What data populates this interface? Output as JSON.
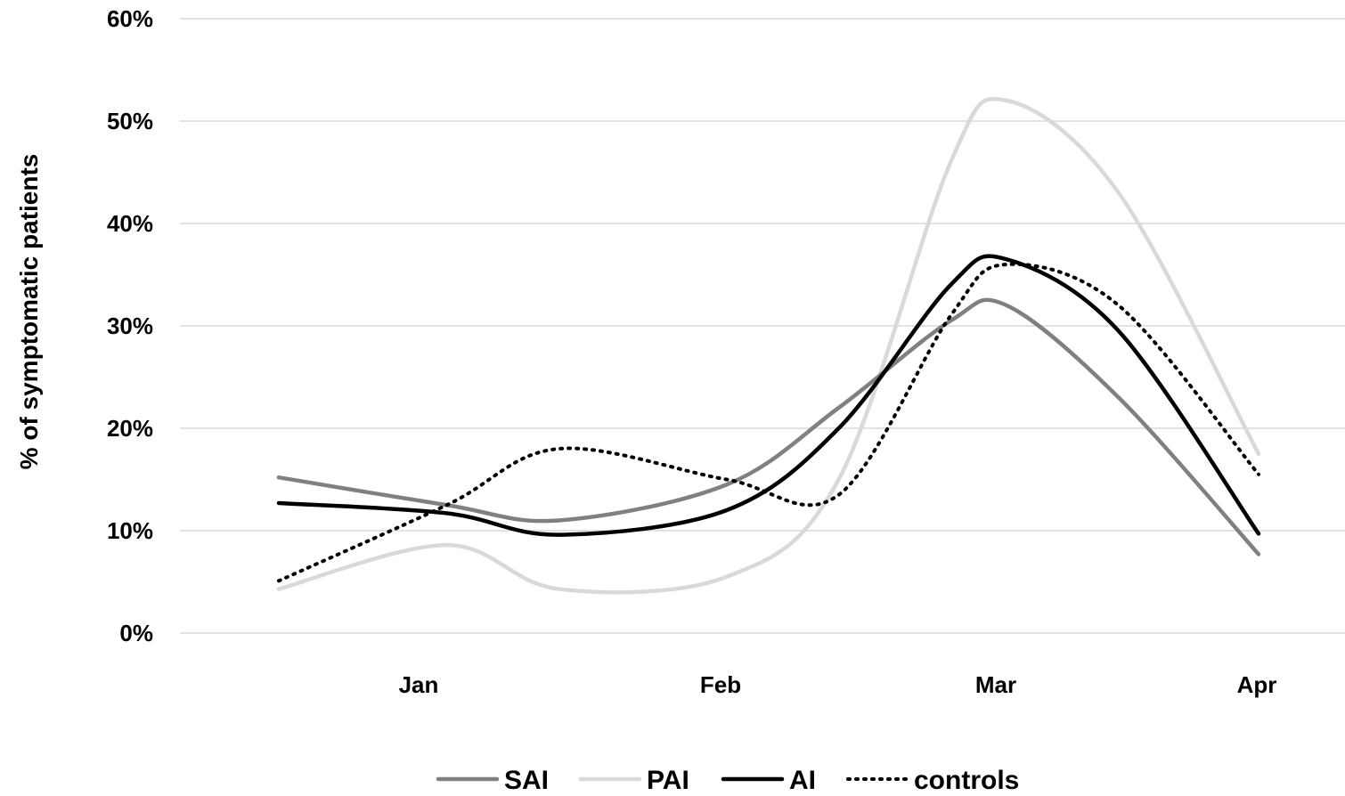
{
  "chart_data": {
    "type": "line",
    "title": "",
    "xlabel": "",
    "ylabel": "% of symptomatic patients",
    "ylim": [
      0,
      60
    ],
    "y_ticks": [
      "0%",
      "10%",
      "20%",
      "30%",
      "40%",
      "50%",
      "60%"
    ],
    "x": [
      0.5,
      1.1,
      1.5,
      2.1,
      2.5,
      2.9,
      3.1,
      3.5,
      4.0
    ],
    "x_ticks": [
      {
        "label": "Jan",
        "value": 1
      },
      {
        "label": "Feb",
        "value": 2
      },
      {
        "label": "Mar",
        "value": 3
      },
      {
        "label": "Apr",
        "value": 4
      }
    ],
    "grid": true,
    "legend_position": "bottom",
    "smooth": true,
    "series": [
      {
        "name": "SAI",
        "color": "#808080",
        "dash": "solid",
        "values": [
          15.2,
          12.5,
          11.0,
          14.5,
          22.0,
          30.5,
          32.0,
          23.0,
          7.7
        ]
      },
      {
        "name": "PAI",
        "color": "#d9d9d9",
        "dash": "solid",
        "values": [
          4.3,
          8.6,
          4.3,
          5.5,
          15.0,
          46.0,
          52.0,
          43.0,
          17.5
        ]
      },
      {
        "name": "AI",
        "color": "#000000",
        "dash": "solid",
        "values": [
          12.7,
          11.7,
          9.6,
          12.0,
          20.0,
          34.0,
          36.5,
          29.5,
          9.7
        ]
      },
      {
        "name": "controls",
        "color": "#000000",
        "dash": "dotted",
        "values": [
          5.1,
          12.5,
          18.0,
          15.0,
          13.5,
          31.0,
          36.0,
          32.0,
          15.5
        ]
      }
    ]
  }
}
